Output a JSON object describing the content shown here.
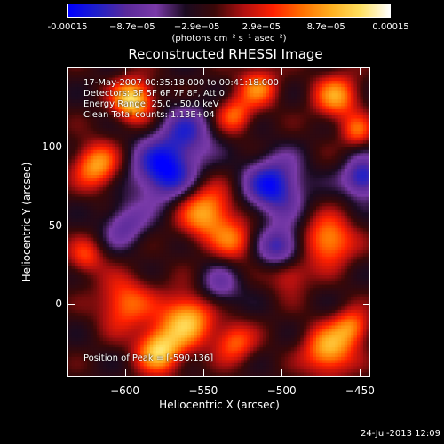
{
  "colors": {
    "background": "#000000",
    "colormap": [
      "#0000ff",
      "#2020c8",
      "#5a2a9a",
      "#7a3aa8",
      "#1a0a20",
      "#3a0808",
      "#b01010",
      "#ff2000",
      "#ff7000",
      "#ffb020",
      "#ffe060",
      "#ffffff"
    ]
  },
  "colorbar": {
    "tick_labels": [
      "-0.00015",
      "−8.7e−05",
      "−2.9e−05",
      "2.9e−05",
      "8.7e−05",
      "0.00015"
    ],
    "unit_label": "(photons cm⁻² s⁻¹ asec⁻²)"
  },
  "info": {
    "line1": "17-May-2007 00:35:18.000 to 00:41:18.000",
    "line2": "Detectors: 3F 5F 6F 7F 8F, Att 0",
    "line3": "Energy Range: 25.0 - 50.0 keV",
    "line4": "Clean   Total counts: 1.13E+04",
    "peak": "Position of Peak = [-590,136]"
  },
  "footer": {
    "date": "24-Jul-2013 12:09"
  },
  "chart_data": {
    "type": "heatmap",
    "title": "Reconstructed RHESSI Image",
    "xlabel": "Heliocentric X (arcsec)",
    "ylabel": "Heliocentric Y (arcsec)",
    "xlim": [
      -636,
      -444
    ],
    "ylim": [
      -46,
      150
    ],
    "x_ticks": [
      -600,
      -550,
      -500,
      -450
    ],
    "y_ticks": [
      0,
      50,
      100
    ],
    "x_tick_labels": [
      "−600",
      "−550",
      "−500",
      "−450"
    ],
    "y_tick_labels": [
      "0",
      "50",
      "100"
    ],
    "color_range": [
      -0.00015,
      0.00015
    ],
    "peak_position": [
      -590,
      136
    ],
    "sources": [
      {
        "x": -595,
        "y": 130,
        "sigma": 9,
        "amp": 1.0
      },
      {
        "x": -618,
        "y": 88,
        "sigma": 10,
        "amp": 0.75
      },
      {
        "x": -548,
        "y": 58,
        "sigma": 12,
        "amp": 0.8
      },
      {
        "x": -530,
        "y": 120,
        "sigma": 8,
        "amp": 0.55
      },
      {
        "x": -515,
        "y": 138,
        "sigma": 9,
        "amp": 0.6
      },
      {
        "x": -465,
        "y": 132,
        "sigma": 10,
        "amp": 0.7
      },
      {
        "x": -452,
        "y": 110,
        "sigma": 7,
        "amp": 0.5
      },
      {
        "x": -470,
        "y": 40,
        "sigma": 11,
        "amp": 0.75
      },
      {
        "x": -495,
        "y": 20,
        "sigma": 9,
        "amp": 0.5
      },
      {
        "x": -600,
        "y": 0,
        "sigma": 12,
        "amp": 0.6
      },
      {
        "x": -560,
        "y": -10,
        "sigma": 12,
        "amp": 0.85
      },
      {
        "x": -578,
        "y": -30,
        "sigma": 10,
        "amp": 0.9
      },
      {
        "x": -470,
        "y": -30,
        "sigma": 11,
        "amp": 0.8
      },
      {
        "x": -455,
        "y": -15,
        "sigma": 8,
        "amp": 0.6
      },
      {
        "x": -625,
        "y": 30,
        "sigma": 8,
        "amp": 0.45
      },
      {
        "x": -530,
        "y": 40,
        "sigma": 9,
        "amp": 0.5
      },
      {
        "x": -530,
        "y": -25,
        "sigma": 9,
        "amp": 0.55
      },
      {
        "x": -575,
        "y": 85,
        "sigma": 14,
        "amp": -0.85
      },
      {
        "x": -505,
        "y": 75,
        "sigma": 13,
        "amp": -0.8
      },
      {
        "x": -448,
        "y": 80,
        "sigma": 9,
        "amp": -0.75
      },
      {
        "x": -500,
        "y": 35,
        "sigma": 10,
        "amp": -0.7
      },
      {
        "x": -560,
        "y": 110,
        "sigma": 12,
        "amp": -0.5
      },
      {
        "x": -600,
        "y": 50,
        "sigma": 10,
        "amp": -0.45
      },
      {
        "x": -540,
        "y": 10,
        "sigma": 10,
        "amp": -0.4
      }
    ]
  }
}
